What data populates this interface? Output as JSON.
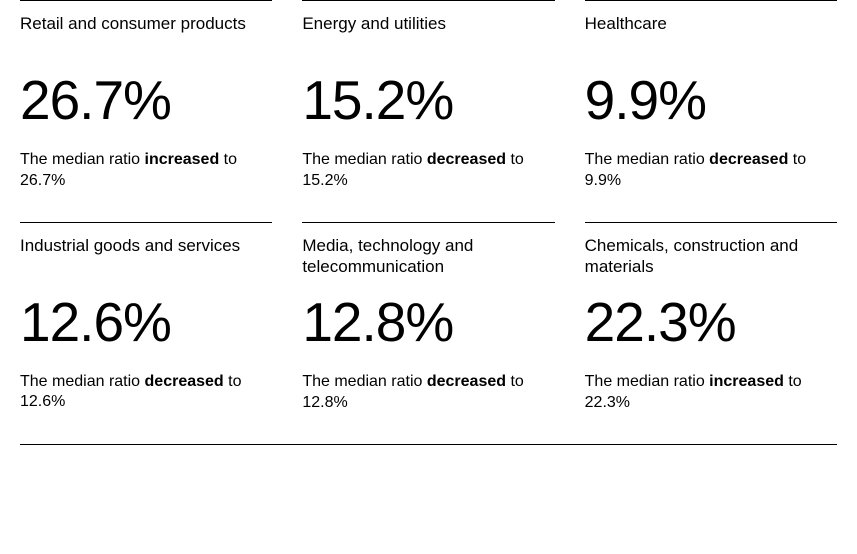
{
  "layout": {
    "columns": 3,
    "rows": 2,
    "background_color": "#ffffff",
    "text_color": "#000000",
    "border_color": "#000000",
    "title_fontsize": 17,
    "value_fontsize": 55,
    "desc_fontsize": 16
  },
  "cards": [
    {
      "title": "Retail and consumer products",
      "value": "26.7%",
      "desc_prefix": "The median ratio ",
      "desc_bold": "increased",
      "desc_suffix": " to 26.7%"
    },
    {
      "title": "Energy and utilities",
      "value": "15.2%",
      "desc_prefix": "The median ratio ",
      "desc_bold": "decreased",
      "desc_suffix": " to 15.2%"
    },
    {
      "title": "Healthcare",
      "value": "9.9%",
      "desc_prefix": "The median ratio ",
      "desc_bold": "decreased",
      "desc_suffix": " to 9.9%"
    },
    {
      "title": "Industrial goods and services",
      "value": "12.6%",
      "desc_prefix": "The median ratio ",
      "desc_bold": "decreased",
      "desc_suffix": " to 12.6%"
    },
    {
      "title": "Media, technology and telecommunication",
      "value": "12.8%",
      "desc_prefix": "The median ratio ",
      "desc_bold": "decreased",
      "desc_suffix": " to 12.8%"
    },
    {
      "title": "Chemicals, construction and materials",
      "value": "22.3%",
      "desc_prefix": "The median ratio ",
      "desc_bold": "increased",
      "desc_suffix": " to 22.3%"
    }
  ]
}
